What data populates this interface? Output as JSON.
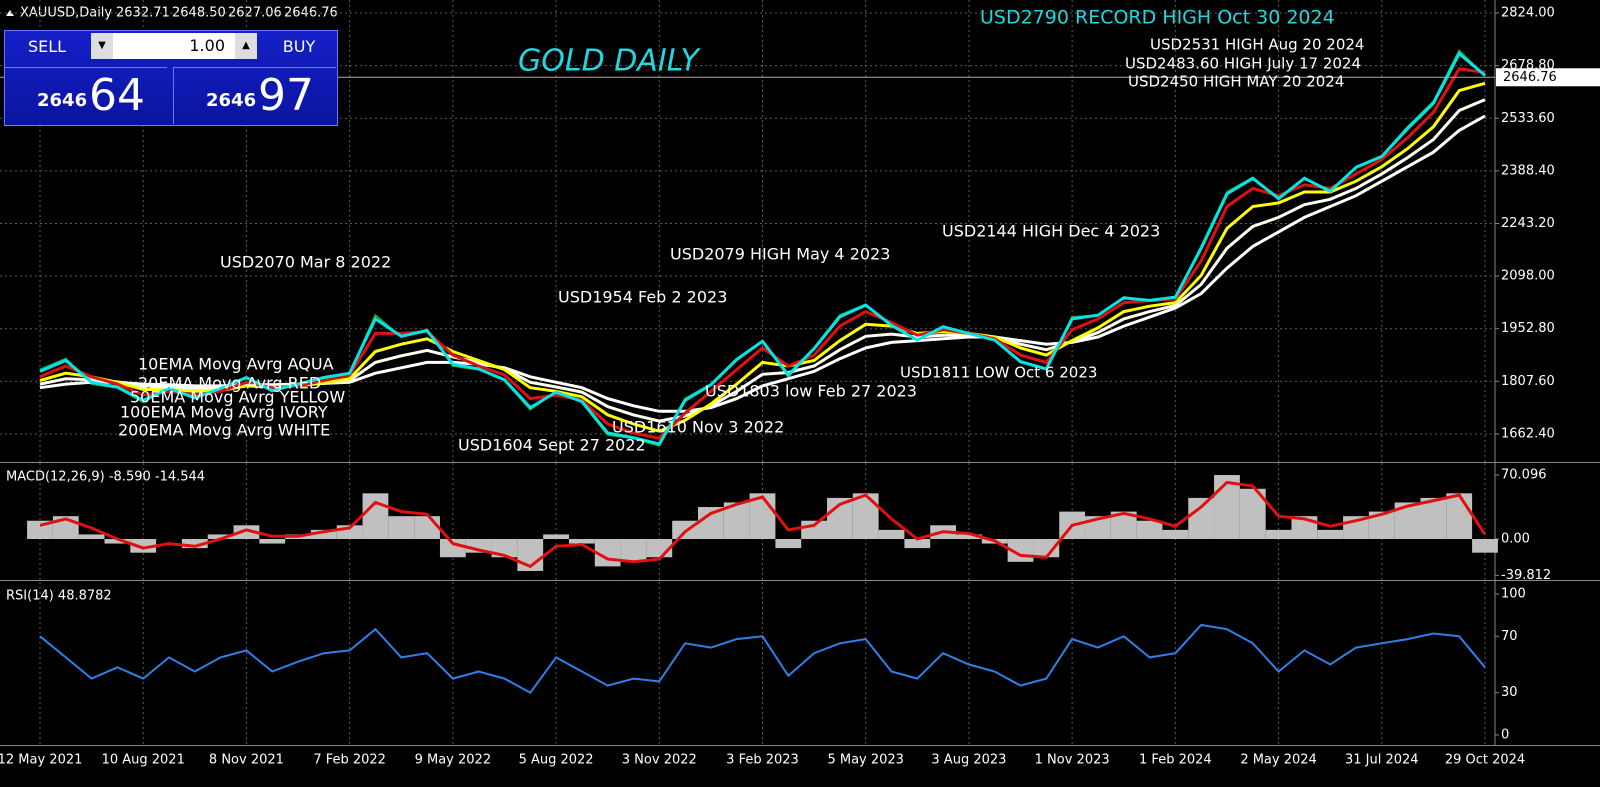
{
  "header": {
    "symbol": "XAUUSD,Daily",
    "ohlc": [
      "2632.71",
      "2648.50",
      "2627.06",
      "2646.76"
    ]
  },
  "trade_panel": {
    "sell": "SELL",
    "buy": "BUY",
    "lot": "1.00",
    "sell_price": {
      "big": "2646",
      "small": "64"
    },
    "buy_price": {
      "big": "2646",
      "small": "97"
    }
  },
  "chart_data": [
    {
      "type": "line",
      "title": "GOLD DAILY",
      "categories": [
        "12 May 2021",
        null,
        null,
        null,
        "10 Aug 2021",
        null,
        null,
        null,
        "8 Nov 2021",
        null,
        null,
        null,
        "7 Feb 2022",
        null,
        null,
        null,
        "9 May 2022",
        null,
        null,
        null,
        "5 Aug 2022",
        null,
        null,
        null,
        "3 Nov 2022",
        null,
        null,
        null,
        "3 Feb 2023",
        null,
        null,
        null,
        "5 May 2023",
        null,
        null,
        null,
        "3 Aug 2023",
        null,
        null,
        null,
        "1 Nov 2023",
        null,
        null,
        null,
        "1 Feb 2024",
        null,
        null,
        null,
        "2 May 2024",
        null,
        null,
        null,
        "31 Jul 2024",
        null,
        null,
        null,
        "29 Oct 2024"
      ],
      "series": [
        {
          "color": "#2ea02e",
          "values": [
            1840,
            1870,
            1800,
            1790,
            1750,
            1790,
            1760,
            1790,
            1820,
            1780,
            1800,
            1820,
            1830,
            1990,
            1930,
            1950,
            1850,
            1840,
            1810,
            1730,
            1780,
            1750,
            1660,
            1650,
            1630,
            1760,
            1800,
            1870,
            1920,
            1820,
            1900,
            1990,
            2020,
            1960,
            1920,
            1960,
            1940,
            1920,
            1860,
            1840,
            1985,
            1990,
            2040,
            2030,
            2040,
            2180,
            2330,
            2370,
            2310,
            2370,
            2330,
            2400,
            2430,
            2510,
            2580,
            2720,
            2650
          ]
        },
        {
          "color": "#ffffff",
          "values": [
            1790,
            1800,
            1805,
            1805,
            1800,
            1798,
            1795,
            1795,
            1798,
            1798,
            1800,
            1802,
            1805,
            1830,
            1845,
            1860,
            1860,
            1855,
            1845,
            1820,
            1805,
            1790,
            1760,
            1740,
            1725,
            1725,
            1735,
            1760,
            1795,
            1815,
            1835,
            1870,
            1900,
            1915,
            1920,
            1925,
            1930,
            1930,
            1920,
            1910,
            1915,
            1930,
            1960,
            1985,
            2010,
            2050,
            2120,
            2180,
            2220,
            2260,
            2290,
            2320,
            2360,
            2400,
            2440,
            2500,
            2540
          ]
        },
        {
          "color": "#fffff0",
          "values": [
            1800,
            1815,
            1812,
            1806,
            1795,
            1792,
            1788,
            1789,
            1796,
            1795,
            1797,
            1802,
            1810,
            1860,
            1878,
            1893,
            1875,
            1860,
            1842,
            1805,
            1792,
            1778,
            1738,
            1715,
            1698,
            1712,
            1740,
            1780,
            1827,
            1832,
            1850,
            1895,
            1932,
            1938,
            1930,
            1935,
            1935,
            1930,
            1910,
            1895,
            1917,
            1942,
            1980,
            2000,
            2017,
            2075,
            2175,
            2235,
            2260,
            2295,
            2310,
            2340,
            2380,
            2425,
            2475,
            2555,
            2585
          ]
        },
        {
          "color": "#ffff00",
          "values": [
            1810,
            1830,
            1820,
            1805,
            1785,
            1785,
            1780,
            1782,
            1795,
            1792,
            1795,
            1803,
            1815,
            1890,
            1910,
            1925,
            1890,
            1865,
            1840,
            1790,
            1780,
            1765,
            1715,
            1690,
            1670,
            1700,
            1745,
            1800,
            1860,
            1850,
            1865,
            1920,
            1965,
            1960,
            1940,
            1945,
            1940,
            1930,
            1900,
            1880,
            1920,
            1955,
            2000,
            2015,
            2025,
            2100,
            2230,
            2290,
            2300,
            2330,
            2330,
            2360,
            2400,
            2450,
            2510,
            2610,
            2630
          ]
        },
        {
          "color": "#e01010",
          "values": [
            1820,
            1850,
            1820,
            1800,
            1770,
            1780,
            1770,
            1780,
            1805,
            1790,
            1795,
            1810,
            1825,
            1940,
            1940,
            1945,
            1880,
            1850,
            1825,
            1760,
            1770,
            1755,
            1690,
            1665,
            1650,
            1720,
            1780,
            1840,
            1900,
            1850,
            1880,
            1960,
            2000,
            1970,
            1935,
            1950,
            1940,
            1925,
            1880,
            1860,
            1950,
            1980,
            2025,
            2030,
            2035,
            2140,
            2290,
            2340,
            2320,
            2350,
            2340,
            2380,
            2420,
            2480,
            2550,
            2670,
            2660
          ]
        },
        {
          "color": "#00e5e5",
          "values": [
            1835,
            1865,
            1805,
            1792,
            1755,
            1788,
            1762,
            1788,
            1818,
            1782,
            1800,
            1818,
            1830,
            1980,
            1932,
            1948,
            1855,
            1842,
            1812,
            1735,
            1778,
            1752,
            1665,
            1652,
            1635,
            1755,
            1798,
            1868,
            1918,
            1825,
            1898,
            1986,
            2018,
            1962,
            1922,
            1958,
            1940,
            1921,
            1862,
            1842,
            1980,
            1990,
            2038,
            2031,
            2040,
            2175,
            2325,
            2368,
            2312,
            2368,
            2332,
            2398,
            2428,
            2505,
            2575,
            2712,
            2652
          ]
        }
      ],
      "ylim": [
        1585,
        2860
      ],
      "yticks": [
        {
          "value": 1662.4,
          "label": "1662.40"
        },
        {
          "value": 1807.6,
          "label": "1807.60"
        },
        {
          "value": 1952.8,
          "label": "1952.80"
        },
        {
          "value": 2098,
          "label": "2098.00"
        },
        {
          "value": 2243.2,
          "label": "2243.20"
        },
        {
          "value": 2388.4,
          "label": "2388.40"
        },
        {
          "value": 2533.6,
          "label": "2533.60"
        },
        {
          "value": 2678.8,
          "label": "2678.80"
        },
        {
          "value": 2824,
          "label": "2824.00"
        }
      ],
      "grid": true,
      "current_price": 2646.76,
      "title_color": "#20d8e0",
      "annotations": [
        {
          "text": "USD2790 RECORD HIGH Oct 30 2024",
          "color": "#20d8e0"
        },
        {
          "text": "USD2531 HIGH Aug 20 2024",
          "color": "#ffffff"
        },
        {
          "text": "USD2483.60 HIGH July 17 2024",
          "color": "#ffffff"
        },
        {
          "text": "USD2450 HIGH MAY 20 2024",
          "color": "#ffffff"
        },
        {
          "text": "USD2144 HIGH Dec 4 2023",
          "color": "#ffffff"
        },
        {
          "text": "USD2079 HIGH May 4 2023",
          "color": "#ffffff"
        },
        {
          "text": "USD2070 Mar 8 2022",
          "color": "#ffffff"
        },
        {
          "text": "USD1954 Feb 2 2023",
          "color": "#ffffff"
        },
        {
          "text": "USD1811 LOW Oct 6 2023",
          "color": "#ffffff"
        },
        {
          "text": "USD1803 low Feb 27 2023",
          "color": "#ffffff"
        },
        {
          "text": "USD1610 Nov 3 2022",
          "color": "#ffffff"
        },
        {
          "text": "USD1604 Sept 27 2022",
          "color": "#ffffff"
        },
        {
          "text": "10EMA Movg Avrg AQUA",
          "color": "#ffffff"
        },
        {
          "text": "20EMA Movg Avrg RED",
          "color": "#ffffff"
        },
        {
          "text": "50EMA Movg Avrg YELLOW",
          "color": "#ffffff"
        },
        {
          "text": "100EMA Movg Avrg IVORY",
          "color": "#ffffff"
        },
        {
          "text": "200EMA Movg Avrg WHITE",
          "color": "#ffffff"
        }
      ]
    },
    {
      "type": "macd",
      "title": "MACD(12,26,9) -8.590 -14.544",
      "series": [
        {
          "color": "#c0c0c0",
          "values": [
            20,
            25,
            5,
            -5,
            -15,
            0,
            -10,
            5,
            15,
            -5,
            5,
            10,
            15,
            50,
            25,
            25,
            -20,
            -15,
            -20,
            -35,
            5,
            -5,
            -30,
            -25,
            -20,
            20,
            35,
            40,
            50,
            -10,
            20,
            45,
            50,
            10,
            -10,
            15,
            5,
            -5,
            -25,
            -20,
            30,
            25,
            30,
            20,
            10,
            45,
            70,
            55,
            10,
            25,
            10,
            25,
            30,
            40,
            45,
            50,
            -15
          ]
        },
        {
          "color": "#e01010",
          "values": [
            15,
            22,
            12,
            0,
            -10,
            -5,
            -8,
            0,
            10,
            3,
            3,
            8,
            12,
            40,
            30,
            27,
            -5,
            -12,
            -18,
            -30,
            -8,
            -6,
            -22,
            -25,
            -22,
            8,
            28,
            38,
            46,
            10,
            15,
            38,
            48,
            22,
            0,
            8,
            6,
            -2,
            -18,
            -20,
            15,
            22,
            28,
            22,
            14,
            35,
            62,
            58,
            25,
            22,
            14,
            20,
            27,
            36,
            42,
            48,
            5
          ]
        }
      ],
      "ylim": [
        -44.9,
        83.2
      ],
      "yticks": [
        -39.812,
        {
          "value": 0,
          "label": "0.00"
        },
        70.096
      ]
    },
    {
      "type": "line",
      "title": "RSI(14) 48.8782",
      "series": [
        {
          "color": "#2f80e8",
          "values": [
            70,
            55,
            40,
            48,
            40,
            55,
            45,
            55,
            60,
            45,
            52,
            58,
            60,
            75,
            55,
            58,
            40,
            45,
            40,
            30,
            55,
            45,
            35,
            40,
            38,
            65,
            62,
            68,
            70,
            42,
            58,
            65,
            68,
            45,
            40,
            58,
            50,
            45,
            35,
            40,
            68,
            62,
            70,
            55,
            58,
            78,
            75,
            65,
            45,
            60,
            50,
            62,
            65,
            68,
            72,
            70,
            48
          ]
        }
      ],
      "ylim": [
        -7.1,
        108.5
      ],
      "yticks": [
        0,
        30,
        70,
        100
      ]
    }
  ]
}
